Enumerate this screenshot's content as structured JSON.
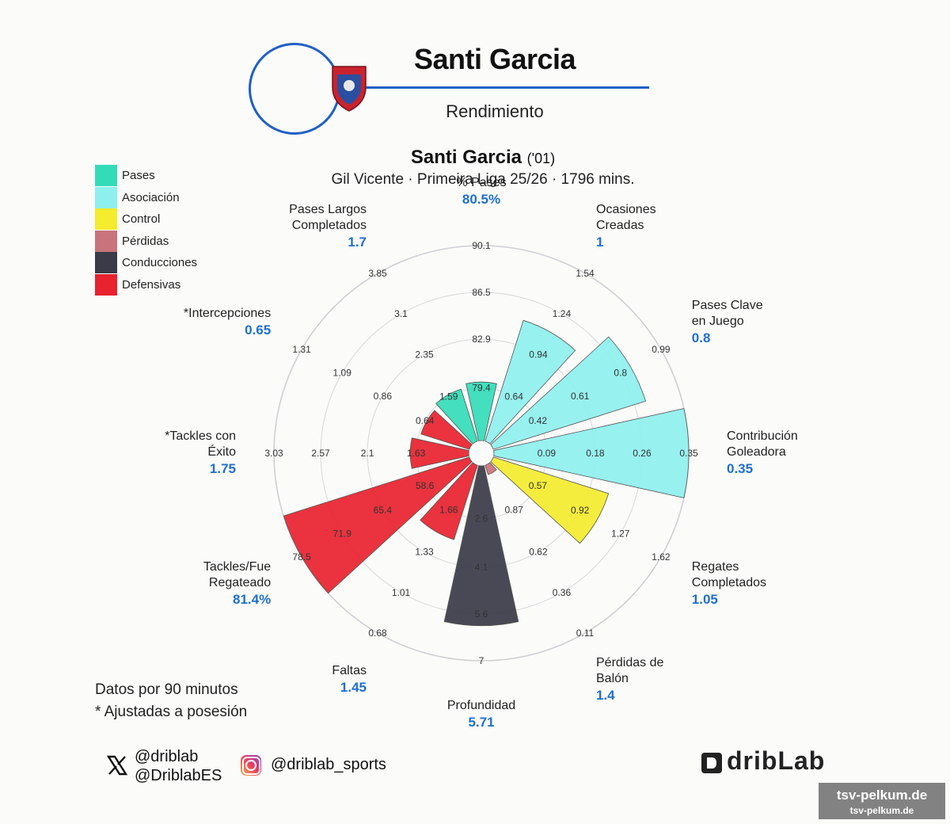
{
  "header": {
    "title": "Santi Garcia",
    "subtitle": "Rendimiento",
    "accent_color": "#1f5fc4"
  },
  "chart_header": {
    "player": "Santi Garcia",
    "year": "('01)",
    "info": "Gil Vicente · Primeira Liga 25/26 · 1796 mins."
  },
  "legend": [
    {
      "label": "Pases",
      "color": "#33dcb8"
    },
    {
      "label": "Asociación",
      "color": "#8ef0ee"
    },
    {
      "label": "Control",
      "color": "#f4ec2c"
    },
    {
      "label": "Pérdidas",
      "color": "#c9737a"
    },
    {
      "label": "Conducciones",
      "color": "#3a3a48"
    },
    {
      "label": "Defensivas",
      "color": "#e8222e"
    }
  ],
  "chart_data": {
    "type": "polar-bar",
    "metrics": [
      {
        "name": "% Pases",
        "value_label": "80.5%",
        "value": 80.5,
        "group": "Pases",
        "ticks": [
          "79.4",
          "82.9",
          "86.5",
          "90.1"
        ],
        "level": 0.3
      },
      {
        "name": "Ocasiones Creadas",
        "value_label": "1",
        "value": 1,
        "group": "Asociación",
        "ticks": [
          "0.64",
          "0.94",
          "1.24",
          "1.54"
        ],
        "level": 0.65
      },
      {
        "name": "Pases Clave en Juego",
        "value_label": "0.8",
        "value": 0.8,
        "group": "Asociación",
        "ticks": [
          "0.42",
          "0.61",
          "0.8",
          "0.99"
        ],
        "level": 0.82
      },
      {
        "name": "Contribución Goleadora",
        "value_label": "0.35",
        "value": 0.35,
        "group": "Asociación",
        "ticks": [
          "0.09",
          "0.18",
          "0.26",
          "0.35"
        ],
        "level": 1.0
      },
      {
        "name": "Regates Completados",
        "value_label": "1.05",
        "value": 1.05,
        "group": "Control",
        "ticks": [
          "0.57",
          "0.92",
          "1.27",
          "1.62"
        ],
        "level": 0.62
      },
      {
        "name": "Pérdidas de Balón",
        "value_label": "1.4",
        "value": 1.4,
        "group": "Pérdidas",
        "ticks": [
          "0.87",
          "0.62",
          "0.36",
          "0.11"
        ],
        "level": 0.05
      },
      {
        "name": "Profundidad",
        "value_label": "5.71",
        "value": 5.71,
        "group": "Conducciones",
        "ticks": [
          "2.6",
          "4.1",
          "5.6",
          "7"
        ],
        "level": 0.82
      },
      {
        "name": "Faltas",
        "value_label": "1.45",
        "value": 1.45,
        "group": "Defensivas",
        "ticks": [
          "1.66",
          "1.33",
          "1.01",
          "0.68"
        ],
        "level": 0.4
      },
      {
        "name": "Tackles/Fue Regateado",
        "value_label": "81.4%",
        "value": 81.4,
        "group": "Defensivas",
        "ticks": [
          "58.6",
          "65.4",
          "71.9",
          "78.5"
        ],
        "level": 1.0
      },
      {
        "name": "*Tackles con Éxito",
        "value_label": "1.75",
        "value": 1.75,
        "group": "Defensivas",
        "ticks": [
          "1.63",
          "2.1",
          "2.57",
          "3.03"
        ],
        "level": 0.3
      },
      {
        "name": "*Intercepciones",
        "value_label": "0.65",
        "value": 0.65,
        "group": "Defensivas",
        "ticks": [
          "0.64",
          "0.86",
          "1.09",
          "1.31"
        ],
        "level": 0.26
      },
      {
        "name": "Pases Largos Completados",
        "value_label": "1.7",
        "value": 1.7,
        "group": "Pases",
        "ticks": [
          "1.59",
          "2.35",
          "3.1",
          "3.85"
        ],
        "level": 0.28
      }
    ]
  },
  "footer": {
    "note1": "Datos por 90 minutos",
    "note2": "* Ajustadas a posesión",
    "twitter_1": "@driblab",
    "twitter_2": "@DriblabES",
    "instagram": "@driblab_sports",
    "brand": "dribLab",
    "watermark_1": "tsv-pelkum.de",
    "watermark_2": "tsv-pelkum.de"
  }
}
